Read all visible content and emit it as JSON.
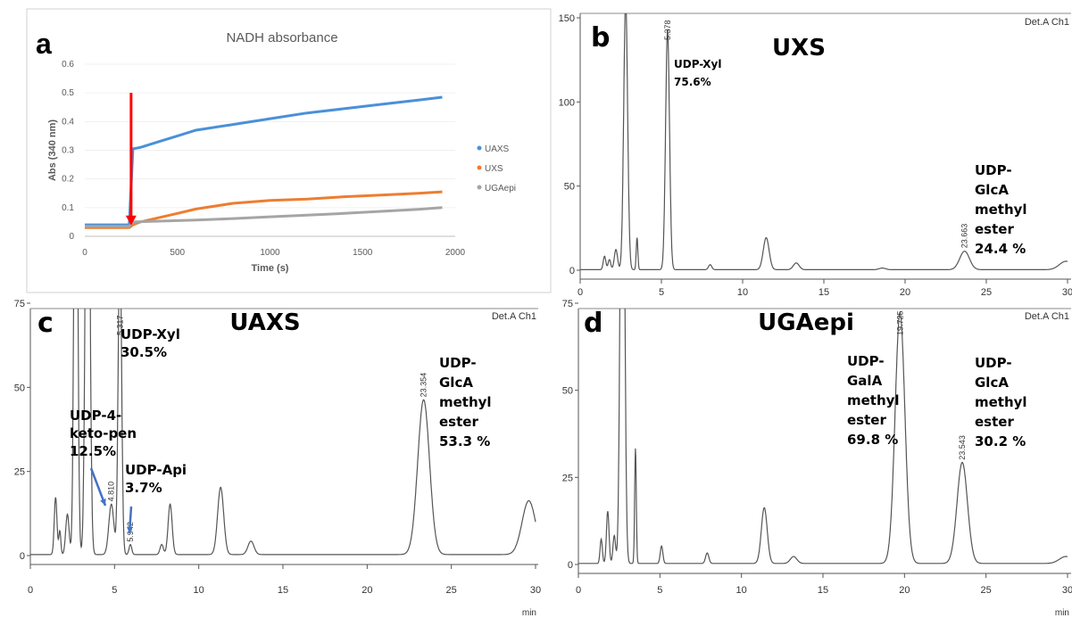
{
  "colors": {
    "uaxs": "#4a90d9",
    "uxs": "#ed7d31",
    "ugaepi": "#a5a5a5",
    "arrow_red": "#ff0000",
    "arrow_blue": "#4472c4",
    "trace": "#555555"
  },
  "chart_data": [
    {
      "panel": "a",
      "type": "line",
      "title": "NADH absorbance",
      "xlabel": "Time (s)",
      "ylabel": "Abs (340 nm)",
      "xlim": [
        0,
        2000
      ],
      "ylim": [
        0,
        0.6
      ],
      "xticks": [
        "0",
        "500",
        "1000",
        "1500",
        "2000"
      ],
      "yticks": [
        "0",
        "0.1",
        "0.2",
        "0.3",
        "0.4",
        "0.5",
        "0.6"
      ],
      "legend_position": "right",
      "series": [
        {
          "name": "UAXS",
          "color_key": "uaxs",
          "x": [
            0,
            240,
            260,
            300,
            400,
            500,
            600,
            800,
            1000,
            1200,
            1400,
            1600,
            1800,
            1930
          ],
          "y": [
            0.04,
            0.04,
            0.305,
            0.31,
            0.33,
            0.35,
            0.37,
            0.39,
            0.41,
            0.43,
            0.445,
            0.46,
            0.475,
            0.485
          ]
        },
        {
          "name": "UXS",
          "color_key": "uxs",
          "x": [
            0,
            240,
            260,
            300,
            400,
            500,
            600,
            800,
            1000,
            1200,
            1400,
            1600,
            1800,
            1930
          ],
          "y": [
            0.03,
            0.03,
            0.04,
            0.05,
            0.065,
            0.08,
            0.095,
            0.115,
            0.125,
            0.13,
            0.138,
            0.144,
            0.15,
            0.155
          ]
        },
        {
          "name": "UGAepi",
          "color_key": "ugaepi",
          "x": [
            0,
            240,
            260,
            400,
            600,
            800,
            1000,
            1200,
            1400,
            1600,
            1800,
            1930
          ],
          "y": [
            0.035,
            0.035,
            0.05,
            0.053,
            0.057,
            0.062,
            0.068,
            0.074,
            0.08,
            0.087,
            0.094,
            0.1
          ]
        }
      ],
      "annotation": {
        "type": "arrow",
        "x": 250,
        "y_from": 0.5,
        "y_to": 0.035,
        "color_key": "arrow_red"
      }
    },
    {
      "panel": "b",
      "type": "line",
      "title": "UXS",
      "corner_label": "Det.A Ch1",
      "xlim": [
        0,
        30
      ],
      "ylim": [
        0,
        150
      ],
      "xticks": [
        "0",
        "5",
        "10",
        "15",
        "20",
        "25",
        "30"
      ],
      "yticks": [
        "0",
        "50",
        "100",
        "150"
      ],
      "peaks": [
        {
          "rt": 1.5,
          "h": 8,
          "w": 0.08
        },
        {
          "rt": 1.8,
          "h": 6,
          "w": 0.08
        },
        {
          "rt": 2.2,
          "h": 12,
          "w": 0.1
        },
        {
          "rt": 2.8,
          "h": 160,
          "w": 0.12
        },
        {
          "rt": 3.5,
          "h": 19,
          "w": 0.05
        },
        {
          "rt": 5.378,
          "h": 143,
          "w": 0.12
        },
        {
          "rt": 8.0,
          "h": 3,
          "w": 0.1
        },
        {
          "rt": 11.45,
          "h": 19,
          "w": 0.18
        },
        {
          "rt": 13.3,
          "h": 4,
          "w": 0.18
        },
        {
          "rt": 18.6,
          "h": 1,
          "w": 0.2
        },
        {
          "rt": 23.663,
          "h": 11,
          "w": 0.3
        },
        {
          "rt": 29.9,
          "h": 5,
          "w": 0.4
        }
      ],
      "rt_labels": [
        "5.378",
        "23.663"
      ],
      "peak_annotations": [
        {
          "lines": [
            "UDP-Xyl",
            "75.6%"
          ]
        },
        {
          "lines": [
            "UDP-",
            "GlcA",
            "methyl",
            "ester",
            "24.4 %"
          ]
        }
      ]
    },
    {
      "panel": "c",
      "type": "line",
      "title": "UAXS",
      "corner_label": "Det.A Ch1",
      "xlabel": "min",
      "xlim": [
        0,
        30
      ],
      "ylim": [
        0,
        75
      ],
      "xticks": [
        "0",
        "5",
        "10",
        "15",
        "20",
        "25",
        "30"
      ],
      "yticks": [
        "0",
        "25",
        "50",
        "75"
      ],
      "peaks": [
        {
          "rt": 1.5,
          "h": 17,
          "w": 0.08
        },
        {
          "rt": 1.75,
          "h": 7,
          "w": 0.06
        },
        {
          "rt": 2.2,
          "h": 12,
          "w": 0.1
        },
        {
          "rt": 2.7,
          "h": 180,
          "w": 0.1
        },
        {
          "rt": 3.4,
          "h": 180,
          "w": 0.12
        },
        {
          "rt": 4.81,
          "h": 15,
          "w": 0.15
        },
        {
          "rt": 5.317,
          "h": 95,
          "w": 0.1
        },
        {
          "rt": 5.942,
          "h": 3,
          "w": 0.08
        },
        {
          "rt": 7.8,
          "h": 3,
          "w": 0.1
        },
        {
          "rt": 8.3,
          "h": 15,
          "w": 0.12
        },
        {
          "rt": 11.3,
          "h": 20,
          "w": 0.18
        },
        {
          "rt": 13.1,
          "h": 4,
          "w": 0.18
        },
        {
          "rt": 23.354,
          "h": 46,
          "w": 0.35
        },
        {
          "rt": 29.6,
          "h": 16,
          "w": 0.4
        }
      ],
      "rt_labels": [
        "5.317",
        "4.810",
        "5.942",
        "23.354"
      ],
      "peak_annotations": [
        {
          "lines": [
            "UDP-Xyl",
            "30.5%"
          ]
        },
        {
          "lines": [
            "UDP-4-",
            "keto-pen",
            "12.5%"
          ]
        },
        {
          "lines": [
            "UDP-Api",
            "3.7%"
          ]
        },
        {
          "lines": [
            "UDP-",
            "GlcA",
            "methyl",
            "ester",
            "53.3 %"
          ]
        }
      ]
    },
    {
      "panel": "d",
      "type": "line",
      "title": "UGAepi",
      "corner_label": "Det.A Ch1",
      "xlabel": "min",
      "xlim": [
        0,
        30
      ],
      "ylim": [
        0,
        75
      ],
      "xticks": [
        "0",
        "5",
        "10",
        "15",
        "20",
        "25",
        "30"
      ],
      "yticks": [
        "0",
        "25",
        "50",
        "75"
      ],
      "peaks": [
        {
          "rt": 1.4,
          "h": 7,
          "w": 0.07
        },
        {
          "rt": 1.8,
          "h": 15,
          "w": 0.08
        },
        {
          "rt": 2.2,
          "h": 8,
          "w": 0.08
        },
        {
          "rt": 2.7,
          "h": 180,
          "w": 0.12
        },
        {
          "rt": 3.5,
          "h": 33,
          "w": 0.05
        },
        {
          "rt": 5.1,
          "h": 5,
          "w": 0.08
        },
        {
          "rt": 7.9,
          "h": 3,
          "w": 0.1
        },
        {
          "rt": 11.4,
          "h": 16,
          "w": 0.18
        },
        {
          "rt": 13.2,
          "h": 2,
          "w": 0.2
        },
        {
          "rt": 19.725,
          "h": 72,
          "w": 0.3
        },
        {
          "rt": 23.543,
          "h": 29,
          "w": 0.32
        },
        {
          "rt": 29.9,
          "h": 2,
          "w": 0.4
        }
      ],
      "rt_labels": [
        "19.725",
        "23.543"
      ],
      "peak_annotations": [
        {
          "lines": [
            "UDP-",
            "GalA",
            "methyl",
            "ester",
            "69.8 %"
          ]
        },
        {
          "lines": [
            "UDP-",
            "GlcA",
            "methyl",
            "ester",
            "30.2 %"
          ]
        }
      ]
    }
  ]
}
